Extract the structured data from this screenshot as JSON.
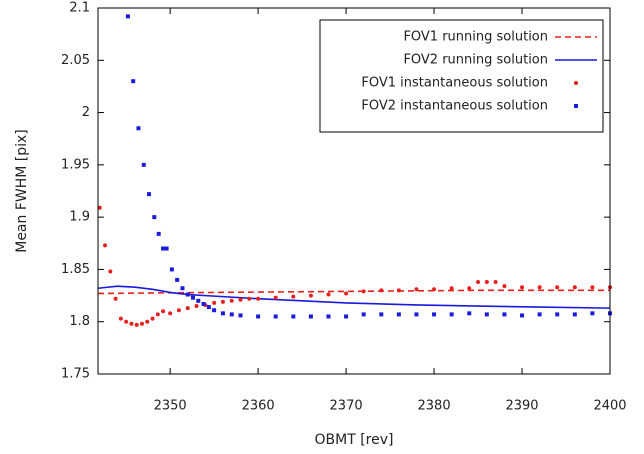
{
  "chart_data": {
    "type": "line",
    "xlabel": "OBMT [rev]",
    "ylabel": "Mean FWHM [pix]",
    "xlim": [
      2341.8,
      2400
    ],
    "xticks": [
      2350,
      2360,
      2370,
      2380,
      2390,
      2400
    ],
    "ylim": [
      1.75,
      2.1
    ],
    "yticks": [
      1.75,
      1.8,
      1.85,
      1.9,
      1.95,
      2,
      2.05,
      2.1
    ],
    "legend": "upper right",
    "series": [
      {
        "name": "FOV1 running solution",
        "color": "#e8201c",
        "kind": "line",
        "dash": true,
        "x": [
          2341.8,
          2355,
          2370,
          2385,
          2400
        ],
        "values": [
          1.827,
          1.828,
          1.829,
          1.83,
          1.83
        ]
      },
      {
        "name": "FOV2 running solution",
        "color": "#1a1adc",
        "kind": "line",
        "dash": false,
        "x": [
          2341.8,
          2344,
          2346,
          2348,
          2350,
          2352,
          2356,
          2360,
          2365,
          2370,
          2378,
          2385,
          2392,
          2400
        ],
        "values": [
          1.832,
          1.834,
          1.833,
          1.831,
          1.828,
          1.826,
          1.824,
          1.822,
          1.82,
          1.818,
          1.816,
          1.815,
          1.814,
          1.813
        ]
      },
      {
        "name": "FOV1 instantaneous solution",
        "color": "#e8201c",
        "kind": "scatter",
        "marker": "circle",
        "x": [
          2342,
          2342.6,
          2343.2,
          2343.8,
          2344.4,
          2345,
          2345.6,
          2346.2,
          2346.8,
          2347.4,
          2348,
          2348.6,
          2349.2,
          2350,
          2351,
          2352,
          2353,
          2354,
          2355,
          2356,
          2357,
          2358,
          2359,
          2360,
          2362,
          2364,
          2366,
          2368,
          2370,
          2372,
          2374,
          2376,
          2378,
          2380,
          2382,
          2384,
          2385,
          2386,
          2387,
          2388,
          2390,
          2392,
          2394,
          2396,
          2398,
          2400
        ],
        "values": [
          1.909,
          1.873,
          1.848,
          1.822,
          1.803,
          1.8,
          1.798,
          1.797,
          1.798,
          1.8,
          1.803,
          1.807,
          1.81,
          1.808,
          1.811,
          1.813,
          1.815,
          1.816,
          1.818,
          1.819,
          1.82,
          1.821,
          1.822,
          1.822,
          1.823,
          1.824,
          1.825,
          1.826,
          1.827,
          1.829,
          1.83,
          1.83,
          1.831,
          1.831,
          1.832,
          1.832,
          1.838,
          1.838,
          1.838,
          1.834,
          1.833,
          1.833,
          1.833,
          1.833,
          1.833,
          1.833
        ]
      },
      {
        "name": "FOV2 instantaneous solution",
        "color": "#1a1adc",
        "kind": "scatter",
        "marker": "square",
        "x": [
          2345.2,
          2345.8,
          2346.4,
          2347,
          2347.6,
          2348.2,
          2348.7,
          2349.2,
          2349.6,
          2350.2,
          2350.8,
          2351.4,
          2352,
          2352.6,
          2353.2,
          2353.8,
          2354.4,
          2355,
          2356,
          2357,
          2358,
          2360,
          2362,
          2364,
          2366,
          2368,
          2370,
          2372,
          2374,
          2376,
          2378,
          2380,
          2382,
          2384,
          2386,
          2388,
          2390,
          2392,
          2394,
          2396,
          2398,
          2400
        ],
        "values": [
          2.092,
          2.03,
          1.985,
          1.95,
          1.922,
          1.9,
          1.884,
          1.87,
          1.87,
          1.85,
          1.84,
          1.832,
          1.826,
          1.823,
          1.82,
          1.817,
          1.814,
          1.811,
          1.808,
          1.807,
          1.806,
          1.805,
          1.805,
          1.805,
          1.805,
          1.805,
          1.805,
          1.807,
          1.807,
          1.807,
          1.807,
          1.807,
          1.807,
          1.808,
          1.807,
          1.807,
          1.806,
          1.807,
          1.807,
          1.807,
          1.808,
          1.808
        ]
      }
    ]
  }
}
